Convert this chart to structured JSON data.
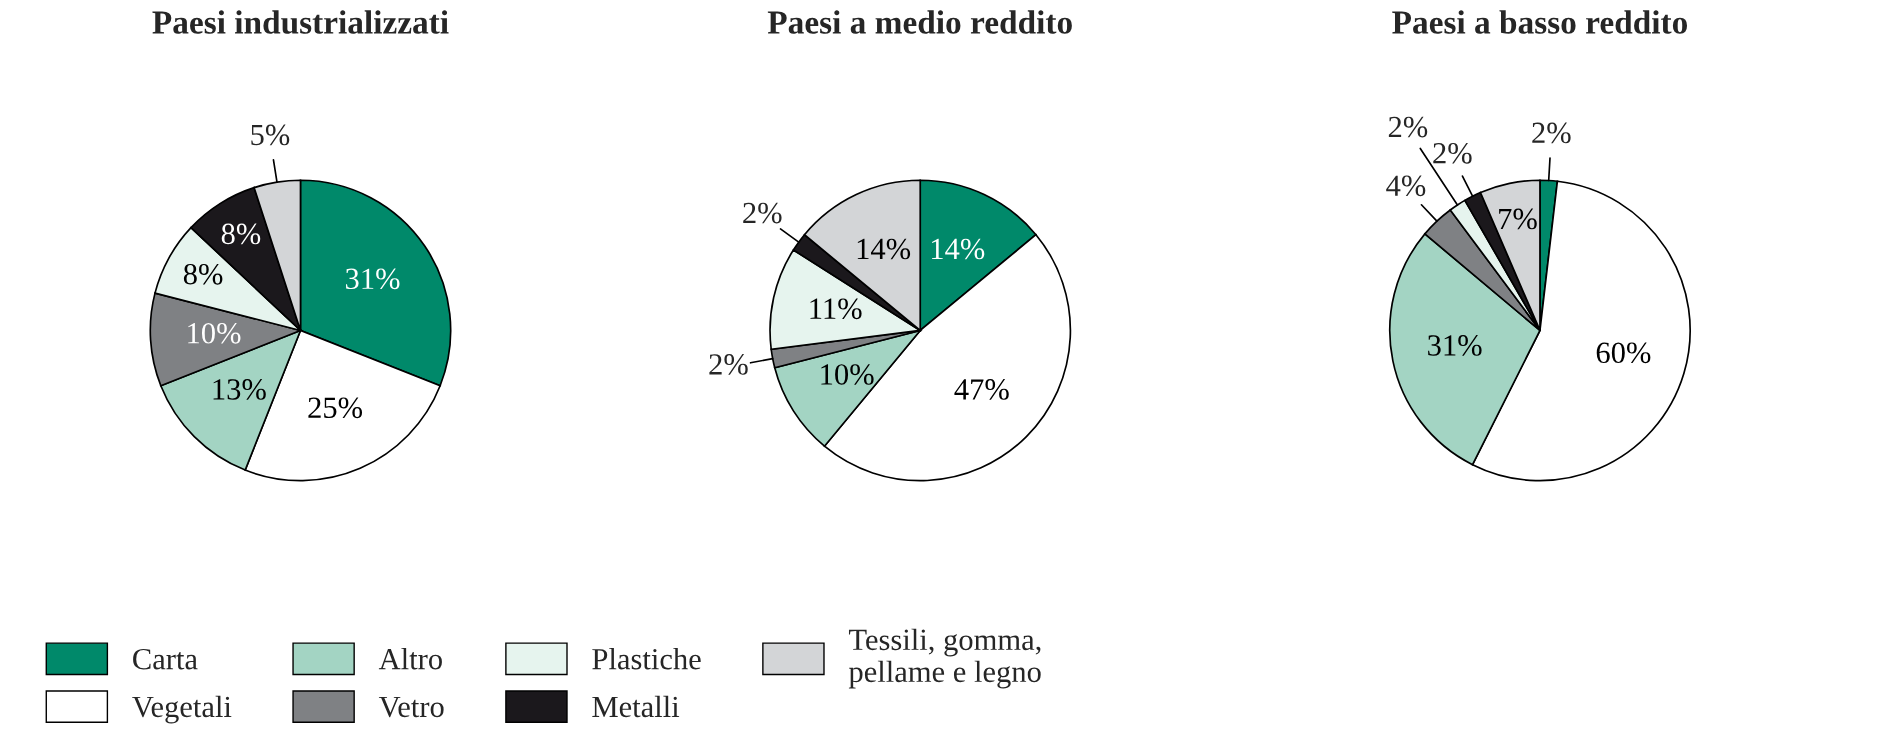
{
  "chart_data": [
    {
      "type": "pie",
      "title": "Paesi industrializzati",
      "categories": [
        "Carta",
        "Vegetali",
        "Altro",
        "Vetro",
        "Plastiche",
        "Metalli",
        "Tessili, gomma,\npellame e legno"
      ],
      "values": [
        31,
        25,
        13,
        10,
        8,
        8,
        5
      ],
      "value_labels": [
        "31%",
        "25%",
        "13%",
        "10%",
        "8%",
        "8%",
        "5%"
      ],
      "colors": [
        "#00896a",
        "#ffffff",
        "#a3d4c3",
        "#7f8184",
        "#e6f4ee",
        "#1b181c",
        "#d3d5d7"
      ],
      "legend": "bottom"
    },
    {
      "type": "pie",
      "title": "Paesi a medio reddito",
      "values": [
        14,
        47,
        10,
        2,
        11,
        2,
        14
      ],
      "value_labels": [
        "14%",
        "47%",
        "10%",
        "2%",
        "11%",
        "2%",
        "14%"
      ],
      "colors": [
        "#00896a",
        "#ffffff",
        "#a3d4c3",
        "#7f8184",
        "#e6f4ee",
        "#1b181c",
        "#d3d5d7"
      ]
    },
    {
      "type": "pie",
      "title": "Paesi a basso reddito",
      "values": [
        2,
        60,
        31,
        4,
        2,
        2,
        7
      ],
      "value_labels": [
        "2%",
        "60%",
        "31%",
        "4%",
        "2%",
        "2%",
        "7%"
      ],
      "colors": [
        "#00896a",
        "#ffffff",
        "#a3d4c3",
        "#7f8184",
        "#e6f4ee",
        "#1b181c",
        "#d3d5d7"
      ]
    }
  ]
}
